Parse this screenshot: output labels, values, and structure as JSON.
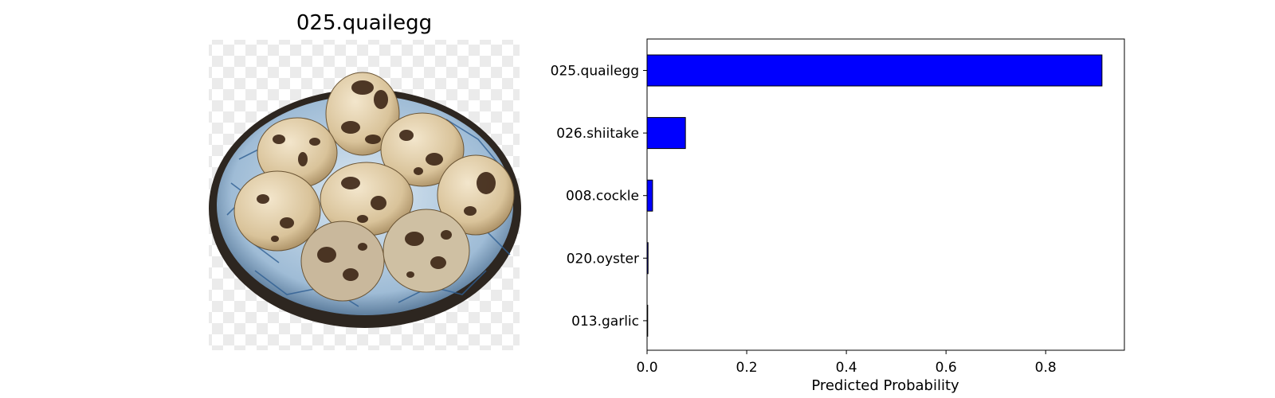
{
  "image_panel": {
    "title": "025.quailegg",
    "photo_icon": "quail-eggs-in-bowl-photo"
  },
  "chart_data": {
    "type": "bar",
    "orientation": "horizontal",
    "categories": [
      "025.quailegg",
      "026.shiitake",
      "008.cockle",
      "020.oyster",
      "013.garlic"
    ],
    "values": [
      0.913,
      0.077,
      0.011,
      0.002,
      0.001
    ],
    "xlabel": "Predicted Probability",
    "ylabel": "",
    "title": "",
    "xlim": [
      0,
      0.958
    ],
    "xticks": [
      0.0,
      0.2,
      0.4,
      0.6,
      0.8
    ],
    "xtick_labels": [
      "0.0",
      "0.2",
      "0.4",
      "0.6",
      "0.8"
    ],
    "grid": false,
    "bar_color": "#0000ff",
    "edge_color": "#000000"
  }
}
